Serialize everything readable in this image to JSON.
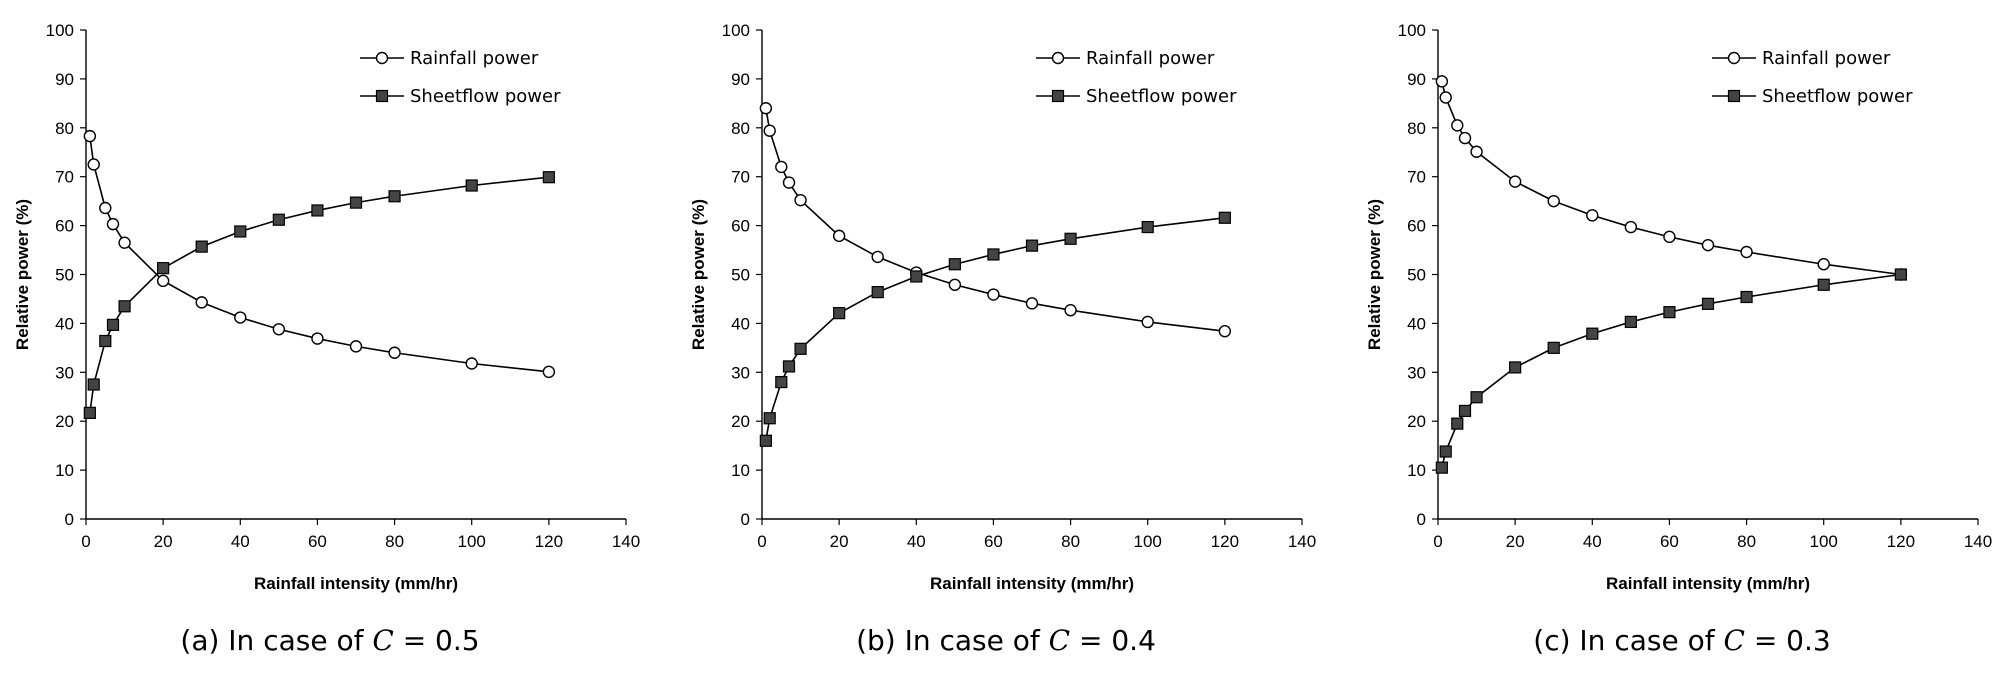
{
  "chart_data": [
    {
      "type": "line",
      "caption": {
        "prefix": "(a) In case of ",
        "variable": "C",
        "suffix": " = 0.5"
      },
      "xlabel": "Rainfall intensity (mm/hr)",
      "ylabel": "Relative power (%)",
      "xlim": [
        0,
        140
      ],
      "ylim": [
        0,
        100
      ],
      "xticks": [
        0,
        20,
        40,
        60,
        80,
        100,
        120,
        140
      ],
      "yticks": [
        0,
        10,
        20,
        30,
        40,
        50,
        60,
        70,
        80,
        90,
        100
      ],
      "grid": false,
      "legend_position": "top-right",
      "series": [
        {
          "name": "Rainfall power",
          "marker": "circle-open",
          "points": [
            [
              1,
              78.3
            ],
            [
              2,
              72.5
            ],
            [
              5,
              63.6
            ],
            [
              7,
              60.3
            ],
            [
              10,
              56.5
            ],
            [
              20,
              48.7
            ],
            [
              30,
              44.3
            ],
            [
              40,
              41.2
            ],
            [
              50,
              38.8
            ],
            [
              60,
              36.9
            ],
            [
              70,
              35.3
            ],
            [
              80,
              34.0
            ],
            [
              100,
              31.8
            ],
            [
              120,
              30.1
            ]
          ]
        },
        {
          "name": "Sheetflow power",
          "marker": "square-filled",
          "points": [
            [
              1,
              21.7
            ],
            [
              2,
              27.5
            ],
            [
              5,
              36.4
            ],
            [
              7,
              39.7
            ],
            [
              10,
              43.5
            ],
            [
              20,
              51.3
            ],
            [
              30,
              55.7
            ],
            [
              40,
              58.8
            ],
            [
              50,
              61.2
            ],
            [
              60,
              63.1
            ],
            [
              70,
              64.7
            ],
            [
              80,
              66.0
            ],
            [
              100,
              68.2
            ],
            [
              120,
              69.9
            ]
          ]
        }
      ]
    },
    {
      "type": "line",
      "caption": {
        "prefix": "(b) In case of ",
        "variable": "C",
        "suffix": " = 0.4"
      },
      "xlabel": "Rainfall intensity (mm/hr)",
      "ylabel": "Relative power (%)",
      "xlim": [
        0,
        140
      ],
      "ylim": [
        0,
        100
      ],
      "xticks": [
        0,
        20,
        40,
        60,
        80,
        100,
        120,
        140
      ],
      "yticks": [
        0,
        10,
        20,
        30,
        40,
        50,
        60,
        70,
        80,
        90,
        100
      ],
      "grid": false,
      "legend_position": "top-right",
      "series": [
        {
          "name": "Rainfall power",
          "marker": "circle-open",
          "points": [
            [
              1,
              84.0
            ],
            [
              2,
              79.4
            ],
            [
              5,
              72.0
            ],
            [
              7,
              68.8
            ],
            [
              10,
              65.2
            ],
            [
              20,
              57.9
            ],
            [
              30,
              53.6
            ],
            [
              40,
              50.4
            ],
            [
              50,
              47.9
            ],
            [
              60,
              45.9
            ],
            [
              70,
              44.1
            ],
            [
              80,
              42.7
            ],
            [
              100,
              40.3
            ],
            [
              120,
              38.4
            ]
          ]
        },
        {
          "name": "Sheetflow power",
          "marker": "square-filled",
          "points": [
            [
              1,
              16.0
            ],
            [
              2,
              20.6
            ],
            [
              5,
              28.0
            ],
            [
              7,
              31.2
            ],
            [
              10,
              34.8
            ],
            [
              20,
              42.1
            ],
            [
              30,
              46.4
            ],
            [
              40,
              49.6
            ],
            [
              50,
              52.1
            ],
            [
              60,
              54.1
            ],
            [
              70,
              55.9
            ],
            [
              80,
              57.3
            ],
            [
              100,
              59.7
            ],
            [
              120,
              61.6
            ]
          ]
        }
      ]
    },
    {
      "type": "line",
      "caption": {
        "prefix": "(c) In case of ",
        "variable": "C",
        "suffix": " = 0.3"
      },
      "xlabel": "Rainfall intensity (mm/hr)",
      "ylabel": "Relative power (%)",
      "xlim": [
        0,
        140
      ],
      "ylim": [
        0,
        100
      ],
      "xticks": [
        0,
        20,
        40,
        60,
        80,
        100,
        120,
        140
      ],
      "yticks": [
        0,
        10,
        20,
        30,
        40,
        50,
        60,
        70,
        80,
        90,
        100
      ],
      "grid": false,
      "legend_position": "top-right",
      "series": [
        {
          "name": "Rainfall power",
          "marker": "circle-open",
          "points": [
            [
              1,
              89.5
            ],
            [
              2,
              86.2
            ],
            [
              5,
              80.5
            ],
            [
              7,
              77.9
            ],
            [
              10,
              75.1
            ],
            [
              20,
              69.0
            ],
            [
              30,
              65.0
            ],
            [
              40,
              62.1
            ],
            [
              50,
              59.7
            ],
            [
              60,
              57.7
            ],
            [
              70,
              56.0
            ],
            [
              80,
              54.6
            ],
            [
              100,
              52.1
            ],
            [
              120,
              50.0
            ]
          ]
        },
        {
          "name": "Sheetflow power",
          "marker": "square-filled",
          "points": [
            [
              1,
              10.5
            ],
            [
              2,
              13.8
            ],
            [
              5,
              19.5
            ],
            [
              7,
              22.1
            ],
            [
              10,
              24.9
            ],
            [
              20,
              31.0
            ],
            [
              30,
              35.0
            ],
            [
              40,
              37.9
            ],
            [
              50,
              40.3
            ],
            [
              60,
              42.3
            ],
            [
              70,
              44.0
            ],
            [
              80,
              45.4
            ],
            [
              100,
              47.9
            ],
            [
              120,
              50.0
            ]
          ]
        }
      ]
    }
  ]
}
